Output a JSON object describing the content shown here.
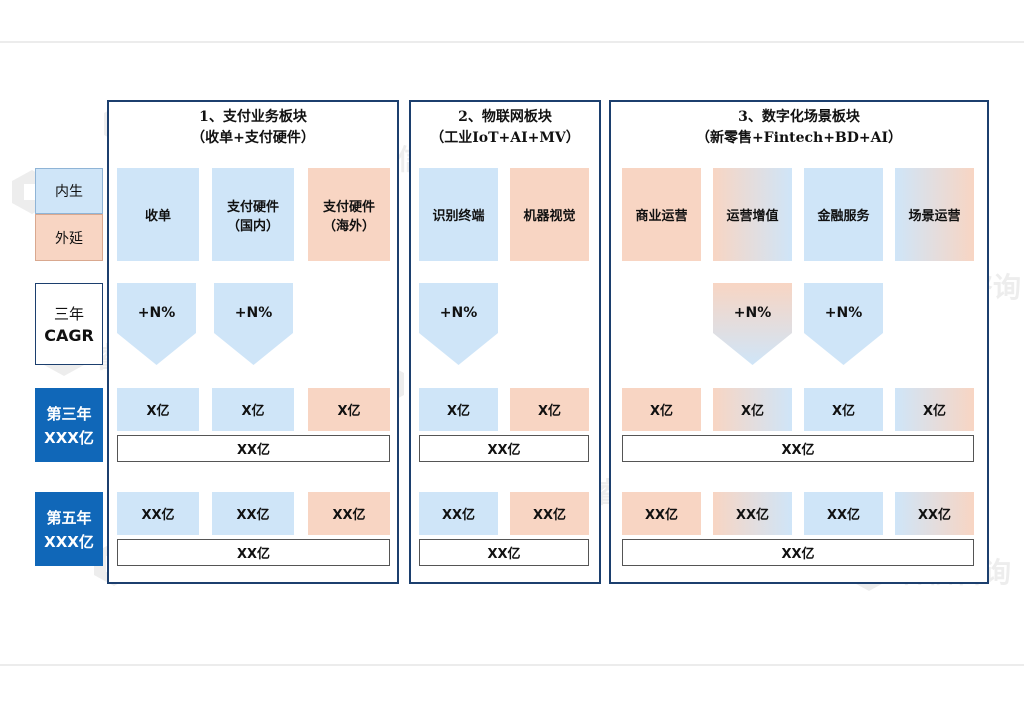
{
  "legend": {
    "internal": "内生",
    "external": "外延"
  },
  "row_labels": {
    "cagr_line1": "三年",
    "cagr_line2": "CAGR",
    "year3_line1": "第三年",
    "year3_line2": "XXX亿",
    "year5_line1": "第五年",
    "year5_line2": "XXX亿"
  },
  "watermark": "睿信咨询",
  "panels": [
    {
      "title_line1": "1、支付业务板块",
      "title_line2": "（收单+支付硬件）",
      "segments": [
        {
          "line1": "收单",
          "line2": "",
          "type": "internal",
          "cagr": "+N%",
          "year3": "X亿",
          "year5": "XX亿"
        },
        {
          "line1": "支付硬件",
          "line2": "（国内）",
          "type": "internal",
          "cagr": "+N%",
          "year3": "X亿",
          "year5": "XX亿"
        },
        {
          "line1": "支付硬件",
          "line2": "（海外）",
          "type": "external",
          "cagr": "",
          "year3": "X亿",
          "year5": "XX亿"
        }
      ],
      "year3_total": "XX亿",
      "year5_total": "XX亿"
    },
    {
      "title_line1": "2、物联网板块",
      "title_line2": "（工业IoT+AI+MV）",
      "segments": [
        {
          "line1": "识别终端",
          "line2": "",
          "type": "internal",
          "cagr": "+N%",
          "year3": "X亿",
          "year5": "XX亿"
        },
        {
          "line1": "机器视觉",
          "line2": "",
          "type": "external",
          "cagr": "",
          "year3": "X亿",
          "year5": "XX亿"
        }
      ],
      "year3_total": "XX亿",
      "year5_total": "XX亿"
    },
    {
      "title_line1": "3、数字化场景板块",
      "title_line2": "（新零售+Fintech+BD+AI）",
      "segments": [
        {
          "line1": "商业运营",
          "line2": "",
          "type": "external",
          "cagr": "",
          "year3": "X亿",
          "year5": "XX亿"
        },
        {
          "line1": "运营增值",
          "line2": "",
          "type": "mixed",
          "cagr": "+N%",
          "year3": "X亿",
          "year5": "XX亿"
        },
        {
          "line1": "金融服务",
          "line2": "",
          "type": "internal",
          "cagr": "+N%",
          "year3": "X亿",
          "year5": "XX亿"
        },
        {
          "line1": "场景运营",
          "line2": "",
          "type": "mixed-reverse",
          "cagr": "",
          "year3": "X亿",
          "year5": "XX亿"
        }
      ],
      "year3_total": "XX亿",
      "year5_total": "XX亿"
    }
  ],
  "colors": {
    "internal": "#cfe5f8",
    "external": "#f8d5c3",
    "label_dark": "#1067b8",
    "panel_border": "#1c3f6e"
  }
}
